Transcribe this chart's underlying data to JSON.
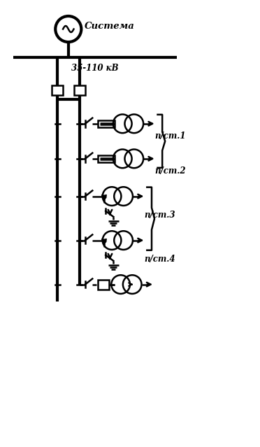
{
  "bg_color": "#ffffff",
  "line_color": "#000000",
  "lw": 1.8,
  "tlw": 3.0,
  "sistema_label": "Система",
  "voltage_label": "35-110 кВ",
  "substation_labels": [
    "п/ст.1",
    "п/ст.2",
    "п/ст.3",
    "п/ст.4"
  ],
  "fig_width": 3.72,
  "fig_height": 6.39,
  "dpi": 100
}
